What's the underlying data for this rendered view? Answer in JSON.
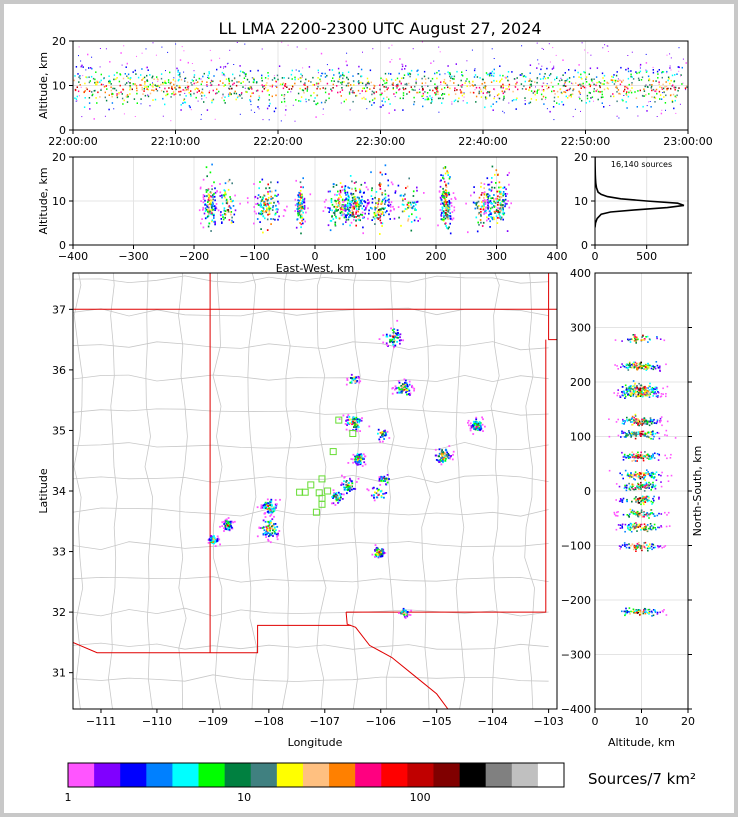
{
  "title": "LL LMA 2200-2300 UTC August 27, 2024",
  "colorbar": {
    "label": "Sources/7 km²",
    "ticks": [
      "1",
      "10",
      "100"
    ],
    "colors": [
      "#ff55ff",
      "#8000ff",
      "#0000ff",
      "#0080ff",
      "#00ffff",
      "#00ff00",
      "#008040",
      "#408080",
      "#ffff00",
      "#ffc080",
      "#ff8000",
      "#ff0080",
      "#ff0000",
      "#c00000",
      "#800000",
      "#000000",
      "#808080",
      "#c0c0c0",
      "#ffffff"
    ]
  },
  "chart_data": [
    {
      "type": "scatter",
      "name_id": "time-height",
      "ylabel": "Altitude, km",
      "xlabel": "",
      "xticks": [
        "22:00:00",
        "22:10:00",
        "22:20:00",
        "22:30:00",
        "22:40:00",
        "22:50:00",
        "23:00:00"
      ],
      "yticks": [
        "0",
        "10",
        "20"
      ],
      "xlim": [
        "22:00:00",
        "23:00:00"
      ],
      "ylim": [
        0,
        20
      ],
      "description_series": "continuous band of sources between ~5 and ~15 km across the full hour"
    },
    {
      "type": "scatter",
      "name_id": "ew-height",
      "xlabel": "East-West, km",
      "ylabel": "Altitude, km",
      "xticks": [
        "−400",
        "−300",
        "−200",
        "−100",
        "0",
        "100",
        "200",
        "300",
        "400"
      ],
      "yticks": [
        "0",
        "10",
        "20"
      ],
      "xlim": [
        -400,
        400
      ],
      "ylim": [
        0,
        20
      ],
      "clusters_x_km": [
        -175,
        -145,
        -80,
        -25,
        40,
        65,
        105,
        150,
        215,
        275,
        300
      ]
    },
    {
      "type": "line",
      "name_id": "altitude-histogram",
      "annotation": "16,140 sources",
      "xticks": [
        "0",
        "500"
      ],
      "yticks": [
        "0",
        "10",
        "20"
      ],
      "xlim": [
        0,
        900
      ],
      "ylim": [
        0,
        20
      ],
      "x": [
        0,
        5,
        20,
        60,
        150,
        400,
        700,
        860,
        800,
        500,
        250,
        120,
        60,
        30,
        15,
        8,
        5,
        3,
        2,
        1,
        0
      ],
      "y": [
        4,
        5,
        6,
        7,
        7.5,
        8,
        8.5,
        9,
        9.5,
        10,
        10.5,
        11,
        11.5,
        12,
        13,
        14,
        15,
        16,
        17,
        18,
        20
      ]
    },
    {
      "type": "scatter",
      "name_id": "plan-view",
      "xlabel": "Longitude",
      "ylabel": "Latitude",
      "xticks": [
        "−111",
        "−110",
        "−109",
        "−108",
        "−107",
        "−106",
        "−105",
        "−104",
        "−103"
      ],
      "yticks": [
        "31",
        "32",
        "33",
        "34",
        "35",
        "36",
        "37"
      ],
      "xlim": [
        -111.5,
        -102.85
      ],
      "ylim": [
        30.4,
        37.6
      ],
      "clusters": [
        {
          "lon": -108.75,
          "lat": 33.45
        },
        {
          "lon": -109.0,
          "lat": 33.2
        },
        {
          "lon": -108.0,
          "lat": 33.4
        },
        {
          "lon": -108.0,
          "lat": 33.75
        },
        {
          "lon": -106.6,
          "lat": 34.1
        },
        {
          "lon": -106.8,
          "lat": 33.9
        },
        {
          "lon": -106.4,
          "lat": 34.55
        },
        {
          "lon": -106.0,
          "lat": 34.95
        },
        {
          "lon": -105.95,
          "lat": 34.2
        },
        {
          "lon": -106.05,
          "lat": 33.98
        },
        {
          "lon": -106.05,
          "lat": 33.0
        },
        {
          "lon": -104.9,
          "lat": 34.6
        },
        {
          "lon": -104.3,
          "lat": 35.1
        },
        {
          "lon": -105.8,
          "lat": 36.55
        },
        {
          "lon": -105.6,
          "lat": 32.0
        },
        {
          "lon": -106.5,
          "lat": 35.15
        },
        {
          "lon": -106.5,
          "lat": 35.85
        },
        {
          "lon": -105.6,
          "lat": 35.7
        }
      ],
      "stations": [
        {
          "lon": -107.25,
          "lat": 34.1
        },
        {
          "lon": -107.05,
          "lat": 34.2
        },
        {
          "lon": -107.35,
          "lat": 33.98
        },
        {
          "lon": -107.1,
          "lat": 33.97
        },
        {
          "lon": -106.95,
          "lat": 34.0
        },
        {
          "lon": -107.05,
          "lat": 33.88
        },
        {
          "lon": -106.85,
          "lat": 34.65
        },
        {
          "lon": -106.5,
          "lat": 34.95
        },
        {
          "lon": -106.75,
          "lat": 35.17
        },
        {
          "lon": -107.15,
          "lat": 33.65
        },
        {
          "lon": -107.05,
          "lat": 33.78
        },
        {
          "lon": -107.45,
          "lat": 33.98
        }
      ]
    },
    {
      "type": "scatter",
      "name_id": "ns-height",
      "xlabel": "Altitude, km",
      "ylabel": "North-South, km",
      "xticks": [
        "0",
        "10",
        "20"
      ],
      "yticks": [
        "−400",
        "−300",
        "−200",
        "−100",
        "0",
        "100",
        "200",
        "300",
        "400"
      ],
      "xlim": [
        0,
        20
      ],
      "ylim": [
        -400,
        400
      ],
      "clusters_ns_km": [
        280,
        230,
        190,
        180,
        130,
        105,
        65,
        30,
        10,
        -15,
        -40,
        -65,
        -100,
        -220
      ]
    }
  ]
}
